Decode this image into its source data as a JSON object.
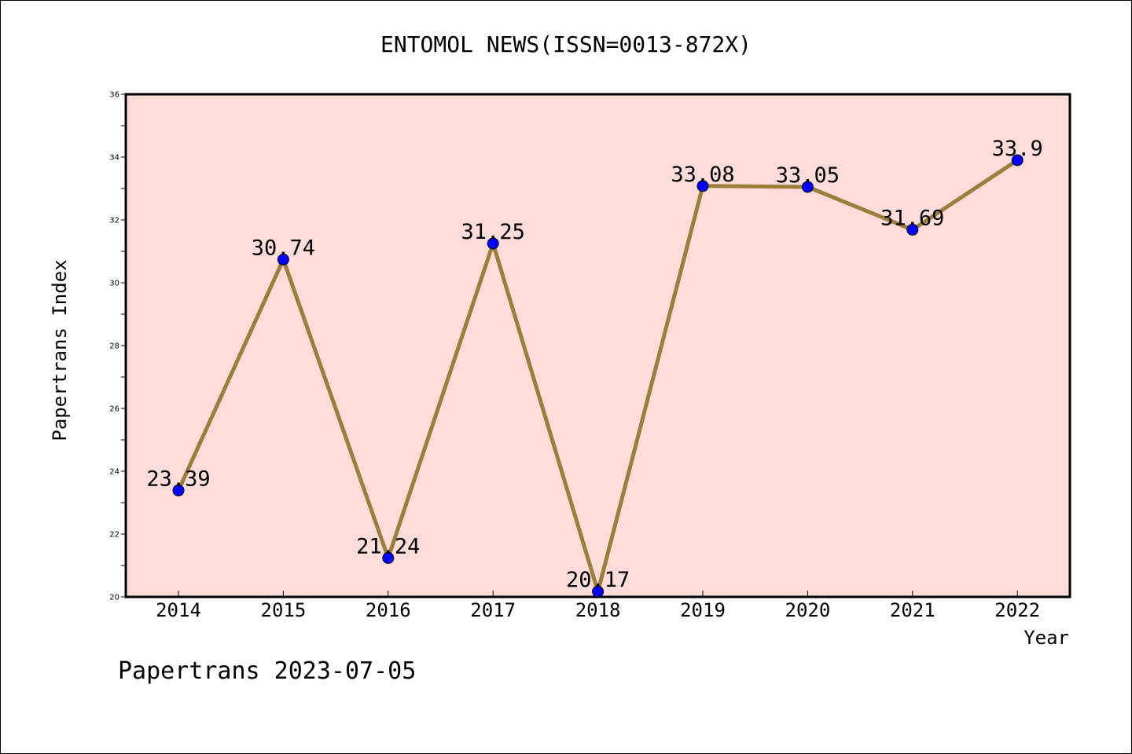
{
  "chart_data": {
    "type": "line",
    "title": "ENTOMOL NEWS(ISSN=0013-872X)",
    "xlabel": "Year",
    "ylabel": "Papertrans Index",
    "categories": [
      "2014",
      "2015",
      "2016",
      "2017",
      "2018",
      "2019",
      "2020",
      "2021",
      "2022"
    ],
    "values": [
      23.39,
      30.74,
      21.24,
      31.25,
      20.17,
      33.08,
      33.05,
      31.69,
      33.9
    ],
    "data_labels": [
      "23.39",
      "30.74",
      "21.24",
      "31.25",
      "20.17",
      "33.08",
      "33.05",
      "31.69",
      "33.9"
    ],
    "ylim": [
      20,
      36
    ],
    "y_ticks": [
      "20",
      "22",
      "24",
      "26",
      "28",
      "30",
      "32",
      "34",
      "36"
    ],
    "grid": false,
    "colors": {
      "background": "#fddcda",
      "line": "#9b7e3b",
      "marker": "#0000ff"
    }
  },
  "footer": {
    "text": "Papertrans 2023-07-05"
  }
}
